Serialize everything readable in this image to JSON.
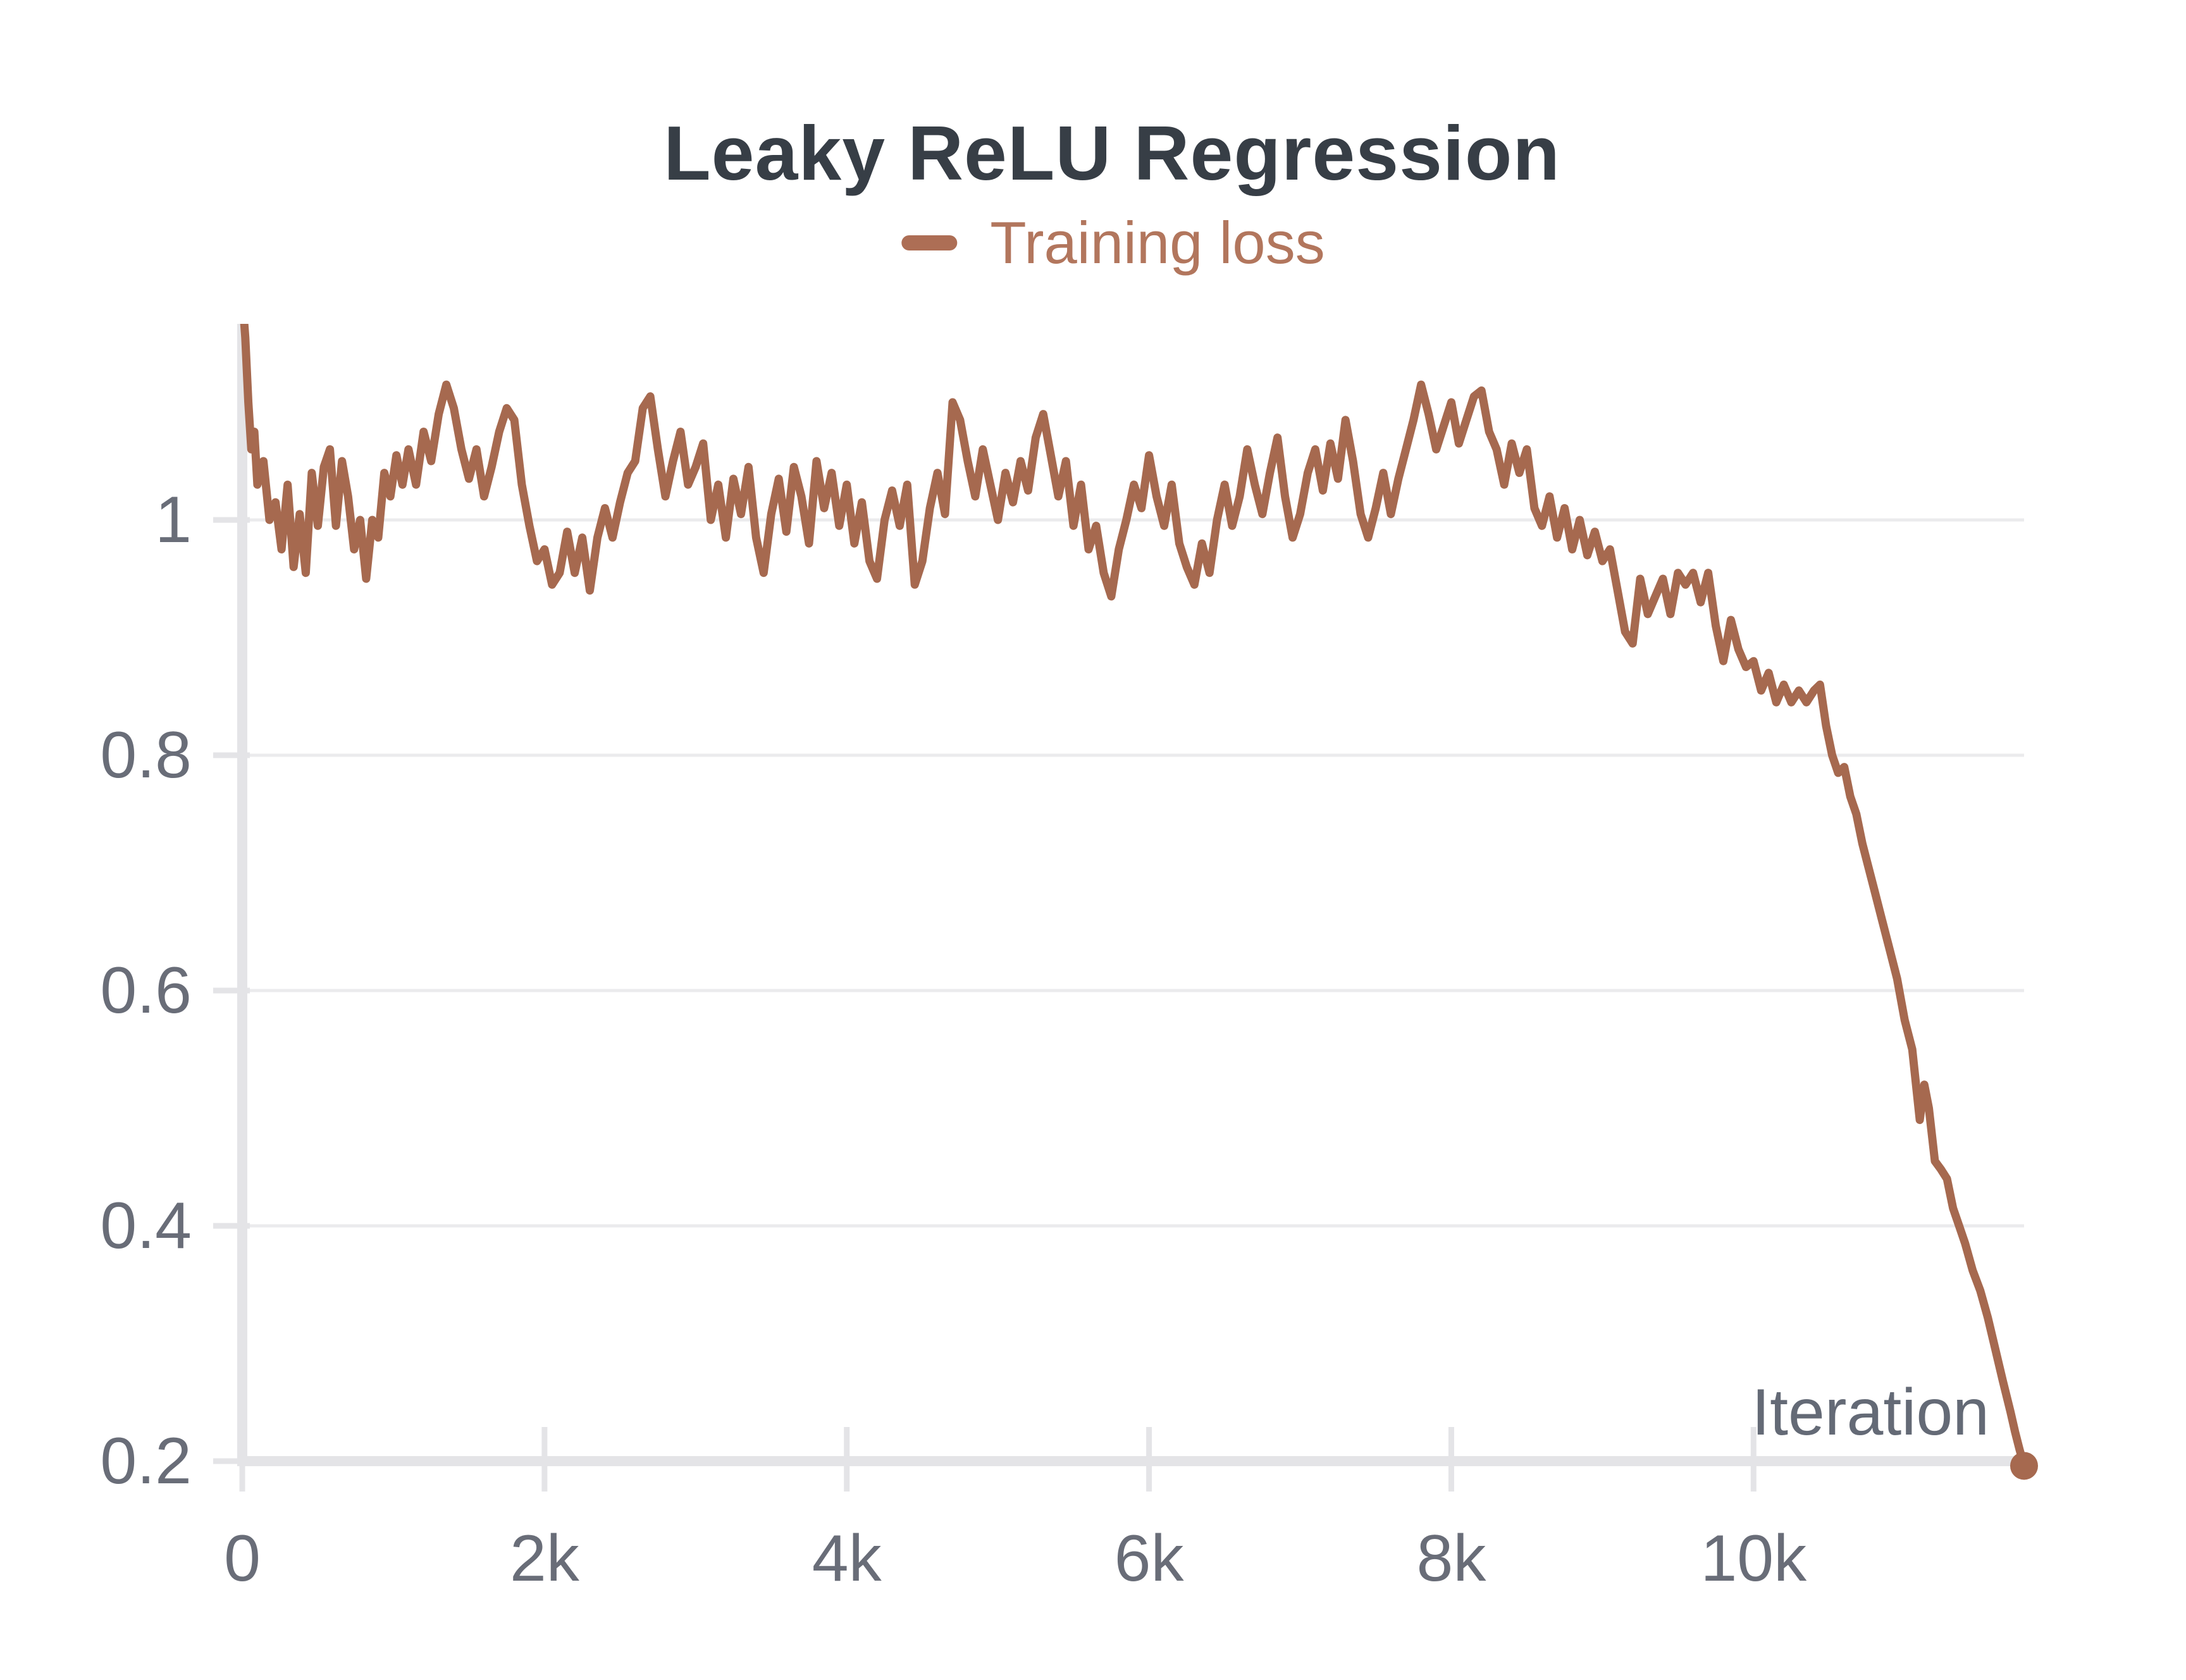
{
  "chart_data": {
    "type": "line",
    "title": "Leaky ReLU Regression",
    "xlabel": "Iteration",
    "ylabel": "",
    "xlim": [
      0,
      11790
    ],
    "ylim": [
      0.195,
      1.167
    ],
    "grid": "horizontal",
    "legend_position": "top-center",
    "colors": {
      "line": "#a6694f",
      "legend_text": "#b2765d",
      "legend_swatch": "#ad6e55",
      "title": "#373e46",
      "tick_text": "#696d78",
      "axis_label_text": "#646a76",
      "gridline": "#ebebed",
      "spine": "#e4e4e7",
      "background": "#ffffff"
    },
    "x_ticks": [
      {
        "v": 0,
        "label": "0"
      },
      {
        "v": 2000,
        "label": "2k"
      },
      {
        "v": 4000,
        "label": "4k"
      },
      {
        "v": 6000,
        "label": "6k"
      },
      {
        "v": 8000,
        "label": "8k"
      },
      {
        "v": 10000,
        "label": "10k"
      }
    ],
    "y_ticks": [
      {
        "v": 0.2,
        "label": "0.2"
      },
      {
        "v": 0.4,
        "label": "0.4"
      },
      {
        "v": 0.6,
        "label": "0.6"
      },
      {
        "v": 0.8,
        "label": "0.8"
      },
      {
        "v": 1,
        "label": "1"
      }
    ],
    "series": [
      {
        "name": "Training loss",
        "color": "#a6694f",
        "endpoint_marker": true,
        "points": [
          [
            0,
            1.19
          ],
          [
            20,
            1.155
          ],
          [
            40,
            1.1
          ],
          [
            60,
            1.06
          ],
          [
            80,
            1.075
          ],
          [
            100,
            1.03
          ],
          [
            140,
            1.05
          ],
          [
            180,
            1.0
          ],
          [
            220,
            1.015
          ],
          [
            260,
            0.975
          ],
          [
            300,
            1.03
          ],
          [
            340,
            0.96
          ],
          [
            380,
            1.005
          ],
          [
            420,
            0.955
          ],
          [
            460,
            1.04
          ],
          [
            500,
            0.995
          ],
          [
            540,
            1.045
          ],
          [
            580,
            1.06
          ],
          [
            620,
            0.995
          ],
          [
            660,
            1.05
          ],
          [
            700,
            1.02
          ],
          [
            740,
            0.975
          ],
          [
            780,
            1.0
          ],
          [
            820,
            0.95
          ],
          [
            860,
            1.0
          ],
          [
            900,
            0.985
          ],
          [
            940,
            1.04
          ],
          [
            980,
            1.02
          ],
          [
            1020,
            1.055
          ],
          [
            1060,
            1.03
          ],
          [
            1100,
            1.06
          ],
          [
            1150,
            1.03
          ],
          [
            1200,
            1.075
          ],
          [
            1250,
            1.05
          ],
          [
            1300,
            1.09
          ],
          [
            1350,
            1.115
          ],
          [
            1400,
            1.095
          ],
          [
            1450,
            1.06
          ],
          [
            1500,
            1.035
          ],
          [
            1550,
            1.06
          ],
          [
            1600,
            1.02
          ],
          [
            1650,
            1.045
          ],
          [
            1700,
            1.075
          ],
          [
            1750,
            1.095
          ],
          [
            1800,
            1.085
          ],
          [
            1850,
            1.03
          ],
          [
            1900,
            0.995
          ],
          [
            1950,
            0.965
          ],
          [
            2000,
            0.975
          ],
          [
            2050,
            0.945
          ],
          [
            2100,
            0.955
          ],
          [
            2150,
            0.99
          ],
          [
            2200,
            0.955
          ],
          [
            2250,
            0.985
          ],
          [
            2300,
            0.94
          ],
          [
            2350,
            0.985
          ],
          [
            2400,
            1.01
          ],
          [
            2450,
            0.985
          ],
          [
            2500,
            1.015
          ],
          [
            2550,
            1.04
          ],
          [
            2600,
            1.05
          ],
          [
            2650,
            1.095
          ],
          [
            2700,
            1.105
          ],
          [
            2750,
            1.06
          ],
          [
            2800,
            1.02
          ],
          [
            2850,
            1.05
          ],
          [
            2900,
            1.075
          ],
          [
            2950,
            1.03
          ],
          [
            3000,
            1.045
          ],
          [
            3050,
            1.065
          ],
          [
            3100,
            1.0
          ],
          [
            3150,
            1.03
          ],
          [
            3200,
            0.985
          ],
          [
            3250,
            1.035
          ],
          [
            3300,
            1.005
          ],
          [
            3350,
            1.045
          ],
          [
            3400,
            0.985
          ],
          [
            3450,
            0.955
          ],
          [
            3500,
            1.005
          ],
          [
            3550,
            1.035
          ],
          [
            3600,
            0.99
          ],
          [
            3650,
            1.045
          ],
          [
            3700,
            1.02
          ],
          [
            3750,
            0.98
          ],
          [
            3800,
            1.05
          ],
          [
            3850,
            1.01
          ],
          [
            3900,
            1.04
          ],
          [
            3950,
            0.995
          ],
          [
            4000,
            1.03
          ],
          [
            4050,
            0.98
          ],
          [
            4100,
            1.015
          ],
          [
            4150,
            0.965
          ],
          [
            4200,
            0.95
          ],
          [
            4250,
            1.0
          ],
          [
            4300,
            1.025
          ],
          [
            4350,
            0.995
          ],
          [
            4400,
            1.03
          ],
          [
            4450,
            0.945
          ],
          [
            4500,
            0.965
          ],
          [
            4550,
            1.01
          ],
          [
            4600,
            1.04
          ],
          [
            4650,
            1.005
          ],
          [
            4700,
            1.1
          ],
          [
            4750,
            1.085
          ],
          [
            4800,
            1.05
          ],
          [
            4850,
            1.02
          ],
          [
            4900,
            1.06
          ],
          [
            4950,
            1.03
          ],
          [
            5000,
            1.0
          ],
          [
            5050,
            1.04
          ],
          [
            5100,
            1.015
          ],
          [
            5150,
            1.05
          ],
          [
            5200,
            1.025
          ],
          [
            5250,
            1.07
          ],
          [
            5300,
            1.09
          ],
          [
            5350,
            1.055
          ],
          [
            5400,
            1.02
          ],
          [
            5450,
            1.05
          ],
          [
            5500,
            0.995
          ],
          [
            5550,
            1.03
          ],
          [
            5600,
            0.975
          ],
          [
            5650,
            0.995
          ],
          [
            5700,
            0.955
          ],
          [
            5750,
            0.935
          ],
          [
            5800,
            0.975
          ],
          [
            5850,
            1.0
          ],
          [
            5900,
            1.03
          ],
          [
            5950,
            1.01
          ],
          [
            6000,
            1.055
          ],
          [
            6050,
            1.02
          ],
          [
            6100,
            0.995
          ],
          [
            6150,
            1.03
          ],
          [
            6200,
            0.98
          ],
          [
            6250,
            0.96
          ],
          [
            6300,
            0.945
          ],
          [
            6350,
            0.98
          ],
          [
            6400,
            0.955
          ],
          [
            6450,
            1.0
          ],
          [
            6500,
            1.03
          ],
          [
            6550,
            0.995
          ],
          [
            6600,
            1.02
          ],
          [
            6650,
            1.06
          ],
          [
            6700,
            1.03
          ],
          [
            6750,
            1.005
          ],
          [
            6800,
            1.04
          ],
          [
            6850,
            1.07
          ],
          [
            6900,
            1.02
          ],
          [
            6950,
            0.985
          ],
          [
            7000,
            1.005
          ],
          [
            7050,
            1.04
          ],
          [
            7100,
            1.06
          ],
          [
            7150,
            1.025
          ],
          [
            7200,
            1.065
          ],
          [
            7250,
            1.035
          ],
          [
            7300,
            1.085
          ],
          [
            7350,
            1.05
          ],
          [
            7400,
            1.005
          ],
          [
            7450,
            0.985
          ],
          [
            7500,
            1.01
          ],
          [
            7550,
            1.04
          ],
          [
            7600,
            1.005
          ],
          [
            7650,
            1.035
          ],
          [
            7700,
            1.06
          ],
          [
            7750,
            1.085
          ],
          [
            7800,
            1.115
          ],
          [
            7850,
            1.09
          ],
          [
            7900,
            1.06
          ],
          [
            7950,
            1.08
          ],
          [
            8000,
            1.1
          ],
          [
            8050,
            1.065
          ],
          [
            8100,
            1.085
          ],
          [
            8150,
            1.105
          ],
          [
            8200,
            1.11
          ],
          [
            8250,
            1.075
          ],
          [
            8300,
            1.06
          ],
          [
            8350,
            1.03
          ],
          [
            8400,
            1.065
          ],
          [
            8450,
            1.04
          ],
          [
            8500,
            1.06
          ],
          [
            8550,
            1.01
          ],
          [
            8600,
            0.995
          ],
          [
            8650,
            1.02
          ],
          [
            8700,
            0.985
          ],
          [
            8750,
            1.01
          ],
          [
            8800,
            0.975
          ],
          [
            8850,
            1.0
          ],
          [
            8900,
            0.97
          ],
          [
            8950,
            0.99
          ],
          [
            9000,
            0.965
          ],
          [
            9050,
            0.975
          ],
          [
            9100,
            0.94
          ],
          [
            9150,
            0.905
          ],
          [
            9200,
            0.895
          ],
          [
            9250,
            0.95
          ],
          [
            9300,
            0.92
          ],
          [
            9350,
            0.935
          ],
          [
            9400,
            0.95
          ],
          [
            9450,
            0.92
          ],
          [
            9500,
            0.955
          ],
          [
            9550,
            0.945
          ],
          [
            9600,
            0.955
          ],
          [
            9650,
            0.93
          ],
          [
            9700,
            0.955
          ],
          [
            9750,
            0.91
          ],
          [
            9800,
            0.88
          ],
          [
            9850,
            0.915
          ],
          [
            9900,
            0.89
          ],
          [
            9950,
            0.875
          ],
          [
            10000,
            0.88
          ],
          [
            10050,
            0.855
          ],
          [
            10100,
            0.87
          ],
          [
            10150,
            0.845
          ],
          [
            10200,
            0.86
          ],
          [
            10250,
            0.845
          ],
          [
            10300,
            0.855
          ],
          [
            10350,
            0.845
          ],
          [
            10400,
            0.855
          ],
          [
            10440,
            0.86
          ],
          [
            10480,
            0.825
          ],
          [
            10520,
            0.8
          ],
          [
            10560,
            0.785
          ],
          [
            10600,
            0.79
          ],
          [
            10640,
            0.765
          ],
          [
            10680,
            0.75
          ],
          [
            10720,
            0.725
          ],
          [
            10760,
            0.705
          ],
          [
            10800,
            0.685
          ],
          [
            10850,
            0.66
          ],
          [
            10900,
            0.635
          ],
          [
            10950,
            0.61
          ],
          [
            11000,
            0.575
          ],
          [
            11050,
            0.55
          ],
          [
            11100,
            0.49
          ],
          [
            11130,
            0.52
          ],
          [
            11160,
            0.5
          ],
          [
            11200,
            0.455
          ],
          [
            11240,
            0.448
          ],
          [
            11280,
            0.44
          ],
          [
            11320,
            0.415
          ],
          [
            11360,
            0.4
          ],
          [
            11400,
            0.385
          ],
          [
            11450,
            0.362
          ],
          [
            11500,
            0.345
          ],
          [
            11550,
            0.322
          ],
          [
            11600,
            0.295
          ],
          [
            11650,
            0.268
          ],
          [
            11700,
            0.242
          ],
          [
            11730,
            0.225
          ],
          [
            11760,
            0.21
          ],
          [
            11790,
            0.196
          ]
        ]
      }
    ]
  }
}
